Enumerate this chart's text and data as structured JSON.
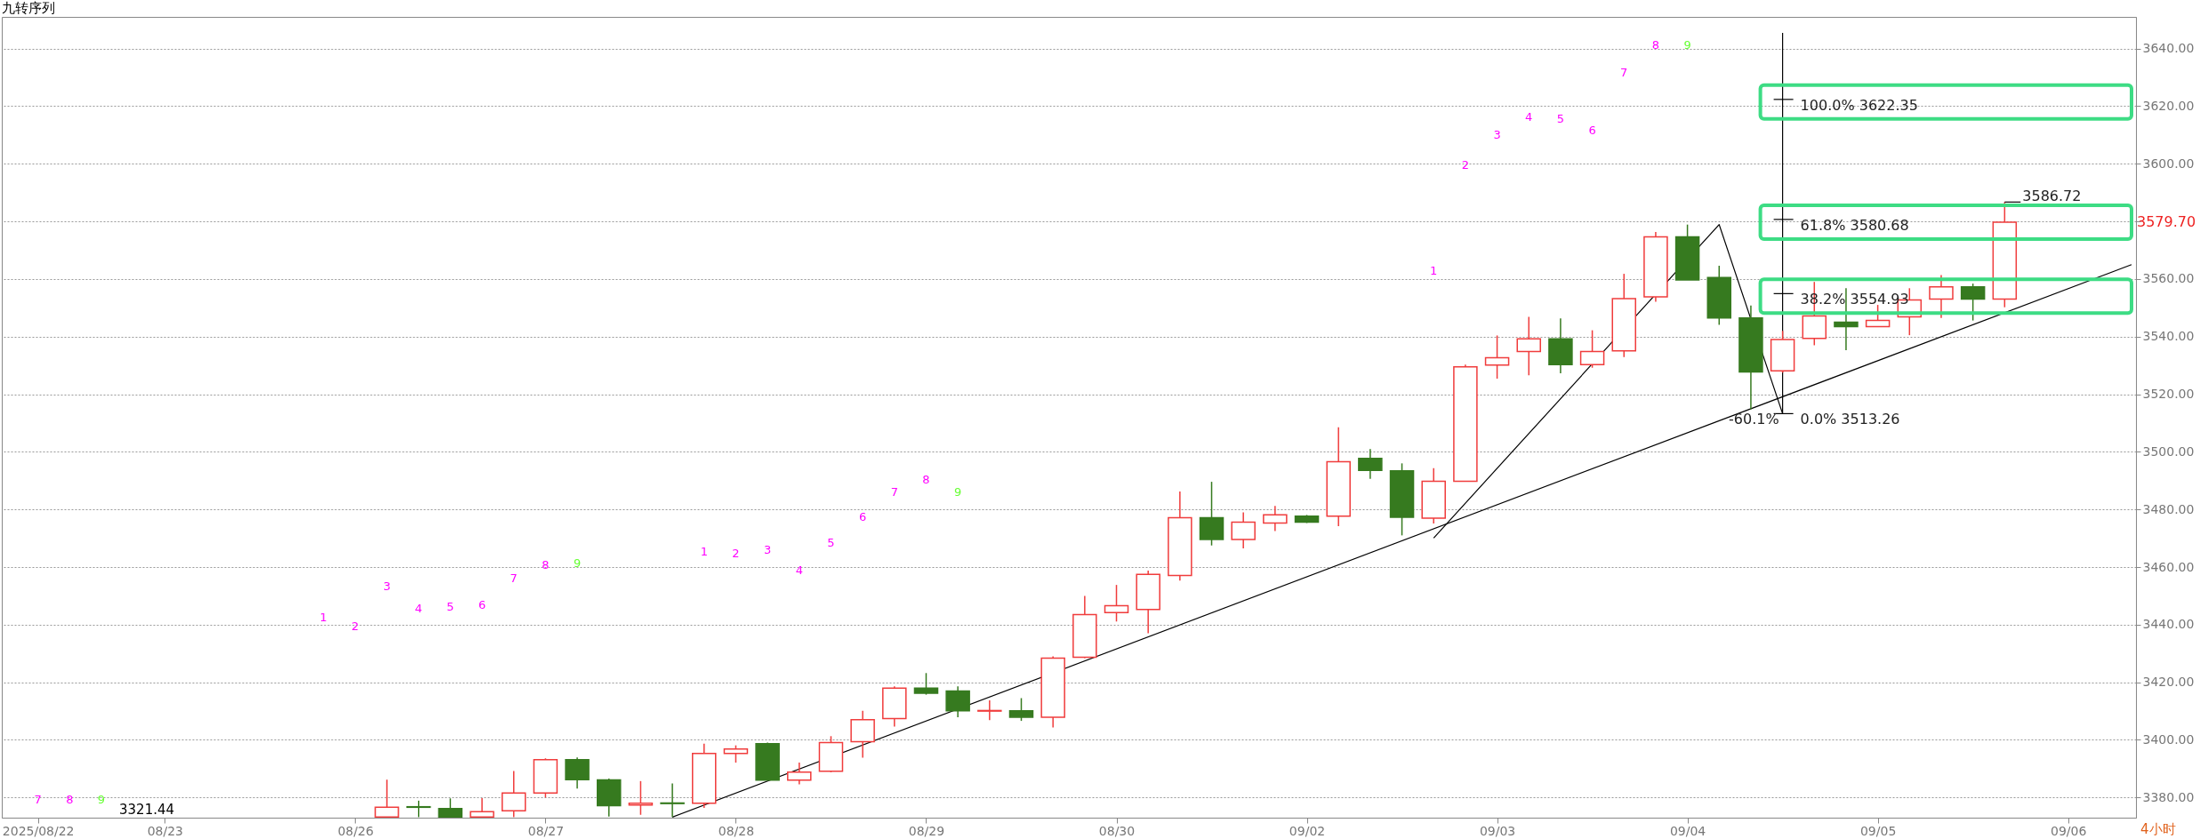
{
  "chart_data": {
    "type": "candlestick",
    "title": "九转序列",
    "categories": [
      null,
      "2025/08/22",
      null,
      null,
      null,
      "08/23",
      null,
      null,
      null,
      null,
      null,
      "08/26",
      null,
      null,
      null,
      null,
      null,
      "08/27",
      null,
      null,
      null,
      null,
      null,
      "08/28",
      null,
      null,
      null,
      null,
      null,
      "08/29",
      null,
      null,
      null,
      null,
      null,
      "08/30",
      null,
      null,
      null,
      null,
      null,
      "09/02",
      null,
      null,
      null,
      null,
      null,
      "09/03",
      null,
      null,
      null,
      null,
      null,
      "09/04",
      null,
      null,
      null,
      null,
      null,
      "09/05",
      null,
      null,
      null,
      null,
      null,
      "09/06",
      null,
      null
    ],
    "ohlc": [
      null,
      null,
      null,
      null,
      null,
      null,
      null,
      null,
      null,
      null,
      null,
      null,
      [
        3373.2,
        3386.2,
        3373.2,
        3376.6
      ],
      [
        3376.8,
        3378.9,
        3373.2,
        3376.6
      ],
      [
        3376.2,
        3379.7,
        3373.2,
        3373.2
      ],
      [
        3373.2,
        3379.8,
        3373.2,
        3375.1
      ],
      [
        3375.4,
        3389.2,
        3373.2,
        3381.6
      ],
      [
        3381.6,
        3393.6,
        3380.0,
        3393.1
      ],
      [
        3393.1,
        3393.9,
        3383.1,
        3386.2
      ],
      [
        3386.1,
        3386.6,
        3373.4,
        3377.2
      ],
      [
        3377.4,
        3385.7,
        3374.0,
        3378.0
      ],
      [
        3378.1,
        3384.9,
        3373.2,
        3377.9
      ],
      [
        3378.0,
        3398.7,
        3376.4,
        3395.3
      ],
      [
        3395.3,
        3398.1,
        3392.1,
        3396.8
      ],
      [
        3398.7,
        3399.1,
        3386.0,
        3386.0
      ],
      [
        3386.0,
        3392.1,
        3384.6,
        3388.8
      ],
      [
        3389.1,
        3401.3,
        3388.8,
        3399.1
      ],
      [
        3399.4,
        3410.1,
        3393.8,
        3407.0
      ],
      [
        3407.4,
        3418.6,
        3404.6,
        3418.0
      ],
      [
        3418.0,
        3423.2,
        3415.7,
        3416.2
      ],
      [
        3417.0,
        3418.6,
        3407.9,
        3410.1
      ],
      [
        3410.0,
        3413.7,
        3406.9,
        3410.2
      ],
      [
        3410.1,
        3414.5,
        3406.6,
        3407.9
      ],
      [
        3407.9,
        3429.0,
        3404.3,
        3428.4
      ],
      [
        3428.7,
        3450.0,
        3428.4,
        3443.5
      ],
      [
        3444.2,
        3453.8,
        3441.1,
        3446.6
      ],
      [
        3445.3,
        3458.8,
        3437.0,
        3457.5
      ],
      [
        3457.1,
        3486.2,
        3455.3,
        3477.1
      ],
      [
        3477.1,
        3489.6,
        3467.5,
        3469.6
      ],
      [
        3469.6,
        3479.0,
        3466.5,
        3475.6
      ],
      [
        3475.3,
        3481.2,
        3472.5,
        3478.1
      ],
      [
        3477.7,
        3478.1,
        3475.3,
        3475.6
      ],
      [
        3477.7,
        3508.5,
        3474.2,
        3496.6
      ],
      [
        3497.7,
        3501.0,
        3490.6,
        3493.6
      ],
      [
        3493.4,
        3496.0,
        3471.0,
        3477.3
      ],
      [
        3477.0,
        3494.3,
        3475.1,
        3489.8
      ],
      [
        3489.8,
        3530.3,
        3489.8,
        3529.5
      ],
      [
        3530.1,
        3540.4,
        3525.4,
        3532.7
      ],
      [
        3534.8,
        3546.9,
        3526.6,
        3539.2
      ],
      [
        3539.2,
        3546.3,
        3527.3,
        3530.3
      ],
      [
        3530.3,
        3542.2,
        3529.2,
        3534.8
      ],
      [
        3535.1,
        3561.8,
        3532.9,
        3553.2
      ],
      [
        3553.8,
        3576.3,
        3552.1,
        3574.6
      ],
      [
        3574.6,
        3578.9,
        3559.7,
        3559.7
      ],
      [
        3560.5,
        3564.6,
        3544.1,
        3546.5
      ],
      [
        3546.5,
        3550.8,
        3514.8,
        3527.7
      ],
      [
        3528.1,
        3542.0,
        3527.5,
        3539.0
      ],
      [
        3539.4,
        3559.0,
        3537.0,
        3547.2
      ],
      [
        3545.0,
        3556.8,
        3535.3,
        3543.5
      ],
      [
        3543.5,
        3551.0,
        3543.5,
        3545.6
      ],
      [
        3546.9,
        3556.8,
        3540.5,
        3552.7
      ],
      [
        3553.0,
        3561.4,
        3546.5,
        3557.3
      ],
      [
        3557.3,
        3558.4,
        3545.6,
        3553.0
      ],
      [
        3553.0,
        3586.72,
        3550.2,
        3579.7
      ],
      null,
      null,
      null,
      null
    ],
    "colors": [
      null,
      null,
      null,
      null,
      null,
      null,
      null,
      null,
      null,
      null,
      null,
      null,
      "#f03c3c",
      "#367a1f",
      "#367a1f",
      "#f03c3c",
      "#f03c3c",
      "#f03c3c",
      "#367a1f",
      "#367a1f",
      "#f03c3c",
      "#367a1f",
      "#f03c3c",
      "#f03c3c",
      "#367a1f",
      "#f03c3c",
      "#f03c3c",
      "#f03c3c",
      "#f03c3c",
      "#367a1f",
      "#367a1f",
      "#f03c3c",
      "#367a1f",
      "#f03c3c",
      "#f03c3c",
      "#f03c3c",
      "#f03c3c",
      "#f03c3c",
      "#367a1f",
      "#f03c3c",
      "#f03c3c",
      "#367a1f",
      "#f03c3c",
      "#367a1f",
      "#367a1f",
      "#f03c3c",
      "#f03c3c",
      "#f03c3c",
      "#f03c3c",
      "#367a1f",
      "#f03c3c",
      "#f03c3c",
      "#f03c3c",
      "#367a1f",
      "#367a1f",
      "#367a1f",
      "#f03c3c",
      "#f03c3c",
      "#367a1f",
      "#f03c3c",
      "#f03c3c",
      "#f03c3c",
      "#367a1f",
      "#f03c3c",
      null,
      null,
      null,
      null
    ],
    "series": [
      {
        "type": "line",
        "color": "#000000",
        "values": [
          null,
          null,
          null,
          null,
          null,
          null,
          null,
          null,
          null,
          null,
          null,
          null,
          null,
          null,
          null,
          null,
          null,
          null,
          null,
          null,
          null,
          3373.2,
          null,
          null,
          null,
          null,
          null,
          null,
          null,
          null,
          null,
          null,
          null,
          null,
          null,
          null,
          null,
          null,
          null,
          null,
          null,
          null,
          null,
          null,
          null,
          null,
          null,
          null,
          null,
          null,
          null,
          null,
          null,
          null,
          null,
          null,
          null,
          null,
          null,
          null,
          null,
          null,
          null,
          null,
          null,
          null,
          null,
          3565.0
        ]
      },
      {
        "type": "line",
        "color": "#000000",
        "values": [
          null,
          null,
          null,
          null,
          null,
          null,
          null,
          null,
          null,
          null,
          null,
          null,
          null,
          null,
          null,
          null,
          null,
          null,
          null,
          null,
          null,
          null,
          null,
          null,
          null,
          null,
          null,
          null,
          null,
          null,
          null,
          null,
          null,
          null,
          null,
          null,
          null,
          null,
          null,
          null,
          null,
          null,
          null,
          null,
          null,
          3470.1,
          null,
          null,
          null,
          null,
          null,
          null,
          null,
          null,
          3578.9,
          null,
          3513.26,
          null,
          null,
          null,
          null,
          null,
          null,
          null,
          null,
          null,
          null,
          null
        ]
      }
    ],
    "ylim": [
      3373,
      3651
    ],
    "yticks": [
      {
        "value": 3380,
        "label": "3380.00"
      },
      {
        "value": 3400,
        "label": "3400.00"
      },
      {
        "value": 3420,
        "label": "3420.00"
      },
      {
        "value": 3440,
        "label": "3440.00"
      },
      {
        "value": 3460,
        "label": "3460.00"
      },
      {
        "value": 3480,
        "label": "3480.00"
      },
      {
        "value": 3500,
        "label": "3500.00"
      },
      {
        "value": 3520,
        "label": "3520.00"
      },
      {
        "value": 3540,
        "label": "3540.00"
      },
      {
        "value": 3560,
        "label": "3560.00"
      },
      {
        "value": 3580,
        "label": null
      },
      {
        "value": 3600,
        "label": "3600.00"
      },
      {
        "value": 3620,
        "label": "3620.00"
      },
      {
        "value": 3640,
        "label": "3640.00"
      }
    ],
    "grid": "y",
    "ref_lines": [
      {
        "axis": "y",
        "value": 3622.35,
        "label": "100.0% 3622.35"
      },
      {
        "axis": "y",
        "value": 3580.68,
        "label": "61.8% 3580.68"
      },
      {
        "axis": "y",
        "value": 3554.93,
        "label": "38.2% 3554.93"
      },
      {
        "axis": "y",
        "value": 3513.26,
        "label": "0.0% 3513.26"
      }
    ],
    "annotations": [
      "7",
      "8",
      "9",
      "1",
      "2",
      "3",
      "4",
      "5",
      "6",
      "7",
      "8",
      "9",
      "1",
      "2",
      "3",
      "4",
      "5",
      "6",
      "7",
      "8",
      "9",
      "1",
      "2",
      "3",
      "4",
      "5",
      "6",
      "7",
      "8",
      "9",
      "-60.1%",
      "3586.72",
      "3579.70",
      "3321.44",
      "4小时"
    ]
  }
}
